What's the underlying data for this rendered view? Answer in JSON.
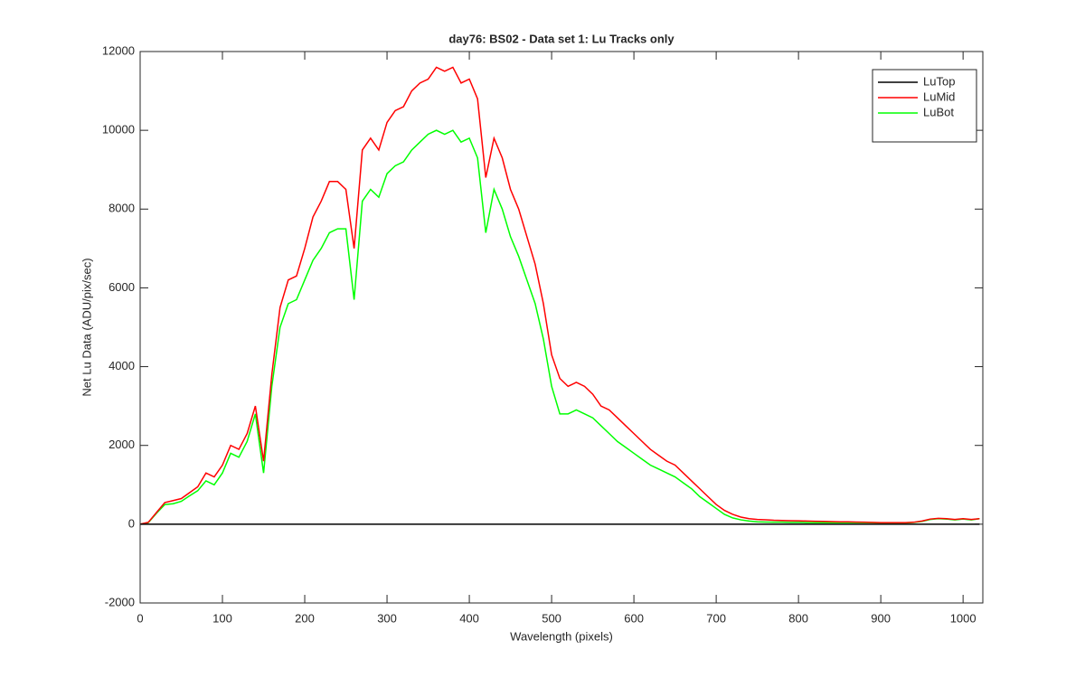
{
  "chart_data": {
    "type": "line",
    "title": "day76: BS02 - Data set 1: Lu Tracks only",
    "xlabel": "Wavelength (pixels)",
    "ylabel": "Net Lu Data (ADU/pix/sec)",
    "xlim": [
      0,
      1024
    ],
    "ylim": [
      -2000,
      12000
    ],
    "xticks": [
      0,
      100,
      200,
      300,
      400,
      500,
      600,
      700,
      800,
      900,
      1000
    ],
    "yticks": [
      -2000,
      0,
      2000,
      4000,
      6000,
      8000,
      10000,
      12000
    ],
    "legend": "upper right",
    "x": [
      0,
      10,
      20,
      30,
      40,
      50,
      60,
      70,
      80,
      90,
      100,
      110,
      120,
      130,
      140,
      150,
      160,
      170,
      180,
      190,
      200,
      210,
      220,
      230,
      240,
      250,
      260,
      270,
      280,
      290,
      300,
      310,
      320,
      330,
      340,
      350,
      360,
      370,
      380,
      390,
      400,
      410,
      420,
      430,
      440,
      450,
      460,
      470,
      480,
      490,
      500,
      510,
      520,
      530,
      540,
      550,
      560,
      570,
      580,
      590,
      600,
      610,
      620,
      630,
      640,
      650,
      660,
      670,
      680,
      690,
      700,
      710,
      720,
      730,
      740,
      750,
      760,
      770,
      780,
      790,
      800,
      810,
      820,
      830,
      840,
      850,
      860,
      870,
      880,
      890,
      900,
      910,
      920,
      930,
      940,
      950,
      960,
      970,
      980,
      990,
      1000,
      1010,
      1020
    ],
    "series": [
      {
        "name": "LuTop",
        "color": "#000000",
        "values": [
          0,
          0,
          0,
          0,
          0,
          0,
          0,
          0,
          0,
          0,
          0,
          0,
          0,
          0,
          0,
          0,
          0,
          0,
          0,
          0,
          0,
          0,
          0,
          0,
          0,
          0,
          0,
          0,
          0,
          0,
          0,
          0,
          0,
          0,
          0,
          0,
          0,
          0,
          0,
          0,
          0,
          0,
          0,
          0,
          0,
          0,
          0,
          0,
          0,
          0,
          0,
          0,
          0,
          0,
          0,
          0,
          0,
          0,
          0,
          0,
          0,
          0,
          0,
          0,
          0,
          0,
          0,
          0,
          0,
          0,
          0,
          0,
          0,
          0,
          0,
          0,
          0,
          0,
          0,
          0,
          0,
          0,
          0,
          0,
          0,
          0,
          0,
          0,
          0,
          0,
          0,
          0,
          0,
          0,
          0,
          0,
          0,
          0,
          0,
          0,
          0,
          0,
          0
        ]
      },
      {
        "name": "LuMid",
        "color": "#ff0000",
        "values": [
          0,
          50,
          300,
          550,
          600,
          650,
          800,
          950,
          1300,
          1200,
          1500,
          2000,
          1900,
          2300,
          3000,
          1600,
          3800,
          5500,
          6200,
          6300,
          7000,
          7800,
          8200,
          8700,
          8700,
          8500,
          7000,
          9500,
          9800,
          9500,
          10200,
          10500,
          10600,
          11000,
          11200,
          11300,
          11600,
          11500,
          11600,
          11200,
          11300,
          10800,
          8800,
          9800,
          9300,
          8500,
          8000,
          7300,
          6600,
          5600,
          4300,
          3700,
          3500,
          3600,
          3500,
          3300,
          3000,
          2900,
          2700,
          2500,
          2300,
          2100,
          1900,
          1750,
          1600,
          1500,
          1300,
          1100,
          900,
          700,
          500,
          350,
          250,
          180,
          140,
          120,
          110,
          100,
          95,
          90,
          85,
          80,
          75,
          70,
          65,
          60,
          60,
          55,
          50,
          45,
          40,
          40,
          40,
          40,
          50,
          80,
          130,
          150,
          140,
          120,
          140,
          120,
          140
        ]
      },
      {
        "name": "LuBot",
        "color": "#00ff00",
        "values": [
          0,
          40,
          280,
          500,
          520,
          580,
          720,
          850,
          1100,
          1000,
          1300,
          1800,
          1700,
          2100,
          2800,
          1300,
          3500,
          5000,
          5600,
          5700,
          6200,
          6700,
          7000,
          7400,
          7500,
          7500,
          5700,
          8200,
          8500,
          8300,
          8900,
          9100,
          9200,
          9500,
          9700,
          9900,
          10000,
          9900,
          10000,
          9700,
          9800,
          9300,
          7400,
          8500,
          8000,
          7300,
          6800,
          6200,
          5600,
          4700,
          3500,
          2800,
          2800,
          2900,
          2800,
          2700,
          2500,
          2300,
          2100,
          1950,
          1800,
          1650,
          1500,
          1400,
          1300,
          1200,
          1050,
          900,
          700,
          550,
          400,
          250,
          160,
          110,
          80,
          60,
          55,
          50,
          50,
          45,
          45,
          40,
          40,
          40,
          40,
          40,
          40,
          40,
          40,
          40,
          35,
          35,
          35,
          35,
          45,
          70,
          120,
          140,
          130,
          110,
          130,
          110,
          140
        ]
      }
    ]
  }
}
